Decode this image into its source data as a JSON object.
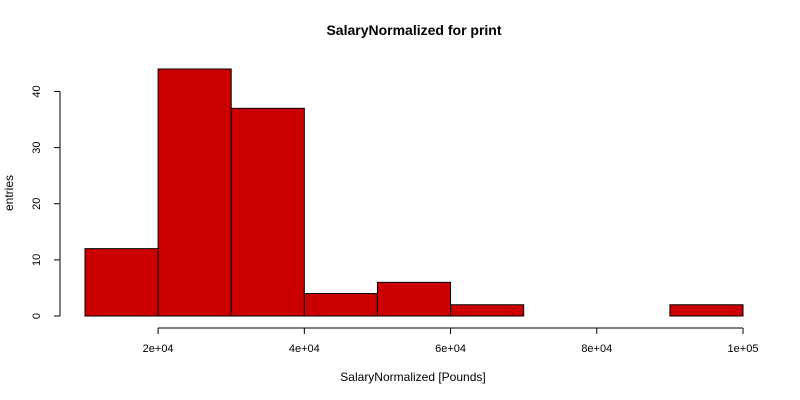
{
  "chart_data": {
    "type": "bar",
    "title": "SalaryNormalized for print",
    "xlabel": "SalaryNormalized [Pounds]",
    "ylabel": "entries",
    "bins": [
      {
        "start": 10000,
        "end": 20000,
        "count": 12
      },
      {
        "start": 20000,
        "end": 30000,
        "count": 44
      },
      {
        "start": 30000,
        "end": 40000,
        "count": 37
      },
      {
        "start": 40000,
        "end": 50000,
        "count": 4
      },
      {
        "start": 50000,
        "end": 60000,
        "count": 6
      },
      {
        "start": 60000,
        "end": 70000,
        "count": 2
      },
      {
        "start": 70000,
        "end": 80000,
        "count": 0
      },
      {
        "start": 80000,
        "end": 90000,
        "count": 0
      },
      {
        "start": 90000,
        "end": 100000,
        "count": 2
      }
    ],
    "xlim": [
      10000,
      100000
    ],
    "ylim": [
      0,
      44
    ],
    "x_ticks": [
      {
        "value": 20000,
        "label": "2e+04"
      },
      {
        "value": 40000,
        "label": "4e+04"
      },
      {
        "value": 60000,
        "label": "6e+04"
      },
      {
        "value": 80000,
        "label": "8e+04"
      },
      {
        "value": 100000,
        "label": "1e+05"
      }
    ],
    "y_ticks": [
      {
        "value": 0,
        "label": "0"
      },
      {
        "value": 10,
        "label": "10"
      },
      {
        "value": 20,
        "label": "20"
      },
      {
        "value": 30,
        "label": "30"
      },
      {
        "value": 40,
        "label": "40"
      }
    ],
    "bar_color": "#cc0000",
    "grid": false,
    "legend": "none"
  }
}
